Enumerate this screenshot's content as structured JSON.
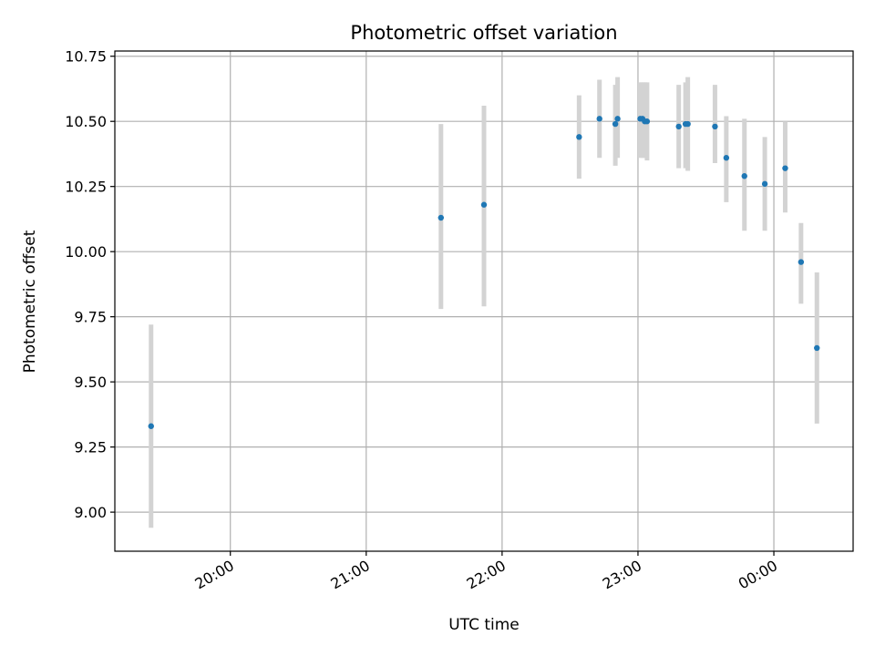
{
  "chart_data": {
    "type": "scatter",
    "title": "Photometric offset variation",
    "xlabel": "UTC time",
    "ylabel": "Photometric offset",
    "x_ticks": [
      "20:00",
      "21:00",
      "22:00",
      "23:00",
      "00:00"
    ],
    "y_ticks": [
      "9.00",
      "9.25",
      "9.50",
      "9.75",
      "10.00",
      "10.25",
      "10.50",
      "10.75"
    ],
    "xlim": [
      "19:09",
      "00:35"
    ],
    "ylim": [
      8.85,
      10.77
    ],
    "grid": true,
    "colors": {
      "point": "#1f77b4",
      "errorbar": "#d3d3d3",
      "grid": "#b0b0b0"
    },
    "points": [
      {
        "time": "19:25",
        "y": 9.33,
        "lo": 8.94,
        "hi": 9.72
      },
      {
        "time": "21:33",
        "y": 10.13,
        "lo": 9.78,
        "hi": 10.49
      },
      {
        "time": "21:52",
        "y": 10.18,
        "lo": 9.79,
        "hi": 10.56
      },
      {
        "time": "22:34",
        "y": 10.44,
        "lo": 10.28,
        "hi": 10.6
      },
      {
        "time": "22:43",
        "y": 10.51,
        "lo": 10.36,
        "hi": 10.66
      },
      {
        "time": "22:50",
        "y": 10.49,
        "lo": 10.33,
        "hi": 10.64
      },
      {
        "time": "22:51",
        "y": 10.51,
        "lo": 10.36,
        "hi": 10.67
      },
      {
        "time": "23:01",
        "y": 10.51,
        "lo": 10.36,
        "hi": 10.65
      },
      {
        "time": "23:02",
        "y": 10.51,
        "lo": 10.36,
        "hi": 10.65
      },
      {
        "time": "23:03",
        "y": 10.5,
        "lo": 10.36,
        "hi": 10.65
      },
      {
        "time": "23:04",
        "y": 10.5,
        "lo": 10.35,
        "hi": 10.65
      },
      {
        "time": "23:18",
        "y": 10.48,
        "lo": 10.32,
        "hi": 10.64
      },
      {
        "time": "23:21",
        "y": 10.49,
        "lo": 10.32,
        "hi": 10.65
      },
      {
        "time": "23:22",
        "y": 10.49,
        "lo": 10.31,
        "hi": 10.67
      },
      {
        "time": "23:34",
        "y": 10.48,
        "lo": 10.34,
        "hi": 10.64
      },
      {
        "time": "23:39",
        "y": 10.36,
        "lo": 10.19,
        "hi": 10.52
      },
      {
        "time": "23:47",
        "y": 10.29,
        "lo": 10.08,
        "hi": 10.51
      },
      {
        "time": "23:56",
        "y": 10.26,
        "lo": 10.08,
        "hi": 10.44
      },
      {
        "time": "00:05",
        "y": 10.32,
        "lo": 10.15,
        "hi": 10.5
      },
      {
        "time": "00:12",
        "y": 9.96,
        "lo": 9.8,
        "hi": 10.11
      },
      {
        "time": "00:19",
        "y": 9.63,
        "lo": 9.34,
        "hi": 9.92
      }
    ]
  }
}
